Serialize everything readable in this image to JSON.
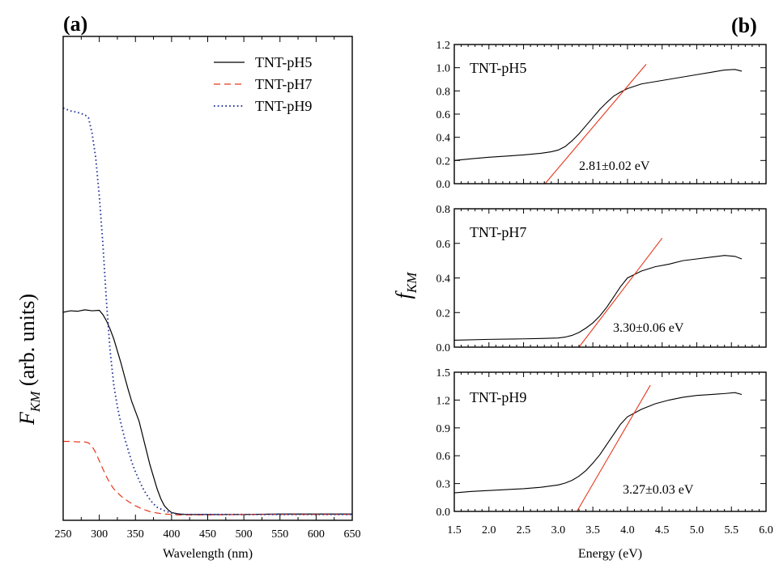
{
  "panels": {
    "a_label": "(a)",
    "b_label": "(b)"
  },
  "colors": {
    "TNT-pH5": "#000000",
    "TNT-pH7": "#e8371c",
    "TNT-pH9": "#2b3a9e",
    "fit_line": "#e8371c"
  },
  "chart_data": [
    {
      "id": "a",
      "type": "line",
      "panel_label": "(a)",
      "xlabel": "Wavelength (nm)",
      "ylabel_main": "F",
      "ylabel_sub": "KM",
      "ylabel_rest": " (arb. units)",
      "xlim": [
        250,
        650
      ],
      "ylim": [
        0,
        1
      ],
      "xticks": [
        250,
        300,
        350,
        400,
        450,
        500,
        550,
        600,
        650
      ],
      "y_tick_labels_shown": false,
      "legend_position": "top-right",
      "legend": [
        "TNT-pH5",
        "TNT-pH7",
        "TNT-pH9"
      ],
      "series": [
        {
          "name": "TNT-pH5",
          "style": "solid",
          "x": [
            250,
            260,
            270,
            280,
            290,
            300,
            305,
            310,
            315,
            320,
            325,
            330,
            335,
            340,
            345,
            350,
            355,
            360,
            365,
            370,
            375,
            380,
            385,
            390,
            395,
            400,
            410,
            420,
            450,
            500,
            550,
            600,
            650
          ],
          "y": [
            0.43,
            0.433,
            0.432,
            0.435,
            0.433,
            0.434,
            0.425,
            0.412,
            0.395,
            0.375,
            0.35,
            0.325,
            0.297,
            0.27,
            0.245,
            0.225,
            0.205,
            0.175,
            0.145,
            0.115,
            0.09,
            0.065,
            0.045,
            0.03,
            0.022,
            0.016,
            0.013,
            0.012,
            0.012,
            0.012,
            0.013,
            0.013,
            0.013
          ]
        },
        {
          "name": "TNT-pH7",
          "style": "dashed",
          "x": [
            250,
            260,
            270,
            280,
            285,
            290,
            295,
            300,
            305,
            310,
            315,
            320,
            330,
            340,
            350,
            360,
            370,
            380,
            390,
            400,
            410,
            420,
            450,
            500,
            550,
            600,
            650
          ],
          "y": [
            0.163,
            0.163,
            0.162,
            0.162,
            0.16,
            0.153,
            0.14,
            0.123,
            0.106,
            0.09,
            0.076,
            0.065,
            0.05,
            0.039,
            0.03,
            0.023,
            0.018,
            0.015,
            0.013,
            0.012,
            0.011,
            0.011,
            0.011,
            0.012,
            0.012,
            0.012,
            0.012
          ]
        },
        {
          "name": "TNT-pH9",
          "style": "dotted",
          "x": [
            250,
            260,
            270,
            280,
            285,
            290,
            295,
            300,
            305,
            310,
            315,
            320,
            325,
            330,
            335,
            340,
            345,
            350,
            355,
            360,
            365,
            370,
            375,
            380,
            390,
            400,
            410,
            420,
            450,
            500,
            550,
            600,
            650
          ],
          "y": [
            0.852,
            0.846,
            0.843,
            0.838,
            0.832,
            0.8,
            0.75,
            0.67,
            0.57,
            0.45,
            0.35,
            0.28,
            0.235,
            0.2,
            0.17,
            0.145,
            0.12,
            0.1,
            0.083,
            0.067,
            0.054,
            0.043,
            0.034,
            0.027,
            0.02,
            0.015,
            0.013,
            0.012,
            0.012,
            0.012,
            0.012,
            0.012,
            0.012
          ]
        }
      ]
    },
    {
      "id": "b",
      "type": "line",
      "panel_label": "(b)",
      "xlabel": "Energy (eV)",
      "ylabel_main": "f",
      "ylabel_sub": "KM",
      "xlim": [
        1.5,
        6.0
      ],
      "xticks": [
        1.5,
        2.0,
        2.5,
        3.0,
        3.5,
        4.0,
        4.5,
        5.0,
        5.5,
        6.0
      ],
      "subplots": [
        {
          "name": "TNT-pH5",
          "ylim": [
            0.0,
            1.2
          ],
          "yticks": [
            0.0,
            0.2,
            0.4,
            0.6,
            0.8,
            1.0,
            1.2
          ],
          "ytick_labels": [
            "0.0",
            "0.2",
            "0.4",
            "0.6",
            "0.8",
            "1.0",
            "1.2"
          ],
          "annotation": "2.81±0.02 eV",
          "x": [
            1.5,
            1.75,
            2.0,
            2.25,
            2.5,
            2.75,
            2.9,
            3.0,
            3.1,
            3.2,
            3.3,
            3.4,
            3.5,
            3.6,
            3.7,
            3.8,
            3.9,
            4.0,
            4.2,
            4.4,
            4.6,
            4.8,
            5.0,
            5.2,
            5.4,
            5.55,
            5.65
          ],
          "y": [
            0.2,
            0.215,
            0.228,
            0.238,
            0.248,
            0.262,
            0.275,
            0.29,
            0.32,
            0.37,
            0.43,
            0.5,
            0.57,
            0.64,
            0.7,
            0.755,
            0.79,
            0.82,
            0.86,
            0.88,
            0.9,
            0.92,
            0.94,
            0.96,
            0.98,
            0.985,
            0.97
          ],
          "fit": {
            "x": [
              2.81,
              4.27
            ],
            "y": [
              0.0,
              1.03
            ]
          }
        },
        {
          "name": "TNT-pH7",
          "ylim": [
            0.0,
            0.8
          ],
          "yticks": [
            0.0,
            0.2,
            0.4,
            0.6,
            0.8
          ],
          "ytick_labels": [
            "0.0",
            "0.2",
            "0.4",
            "0.6",
            "0.8"
          ],
          "annotation": "3.30±0.06 eV",
          "x": [
            1.5,
            2.0,
            2.5,
            2.75,
            3.0,
            3.1,
            3.2,
            3.3,
            3.4,
            3.5,
            3.6,
            3.7,
            3.8,
            3.9,
            4.0,
            4.2,
            4.4,
            4.6,
            4.8,
            5.0,
            5.2,
            5.4,
            5.55,
            5.65
          ],
          "y": [
            0.04,
            0.045,
            0.048,
            0.05,
            0.053,
            0.058,
            0.068,
            0.085,
            0.11,
            0.14,
            0.18,
            0.23,
            0.29,
            0.35,
            0.4,
            0.44,
            0.465,
            0.48,
            0.5,
            0.51,
            0.52,
            0.53,
            0.525,
            0.51
          ],
          "fit": {
            "x": [
              3.3,
              4.5
            ],
            "y": [
              0.0,
              0.63
            ]
          }
        },
        {
          "name": "TNT-pH9",
          "ylim": [
            0.0,
            1.5
          ],
          "yticks": [
            0.0,
            0.3,
            0.6,
            0.9,
            1.2,
            1.5
          ],
          "ytick_labels": [
            "0.0",
            "0.3",
            "0.6",
            "0.9",
            "1.2",
            "1.5"
          ],
          "annotation": "3.27±0.03 eV",
          "x": [
            1.5,
            1.75,
            2.0,
            2.25,
            2.5,
            2.75,
            3.0,
            3.1,
            3.2,
            3.3,
            3.4,
            3.5,
            3.6,
            3.7,
            3.8,
            3.9,
            4.0,
            4.2,
            4.4,
            4.6,
            4.8,
            5.0,
            5.2,
            5.4,
            5.55,
            5.65
          ],
          "y": [
            0.2,
            0.215,
            0.225,
            0.235,
            0.245,
            0.26,
            0.285,
            0.305,
            0.335,
            0.38,
            0.44,
            0.52,
            0.61,
            0.72,
            0.83,
            0.94,
            1.02,
            1.1,
            1.16,
            1.2,
            1.23,
            1.25,
            1.26,
            1.27,
            1.28,
            1.26
          ],
          "fit": {
            "x": [
              3.27,
              4.33
            ],
            "y": [
              0.0,
              1.36
            ]
          }
        }
      ]
    }
  ]
}
